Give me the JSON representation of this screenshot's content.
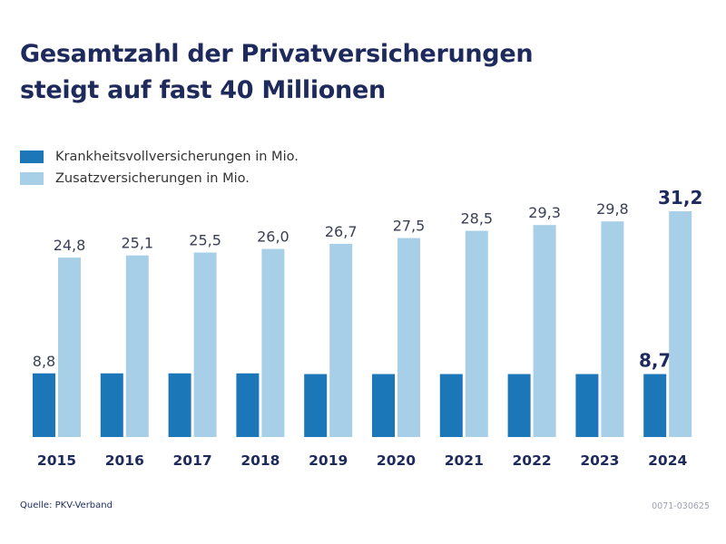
{
  "title_lines": [
    "Gesamtzahl der Privatversicherungen",
    "steigt auf fast 40 Millionen"
  ],
  "legend": [
    {
      "label": "Krankheitsvollversicherungen in Mio.",
      "color": "#1c77b8"
    },
    {
      "label": "Zusatzversicherungen in Mio.",
      "color": "#a8cfe8"
    }
  ],
  "chart_data": {
    "type": "bar",
    "categories": [
      "2015",
      "2016",
      "2017",
      "2018",
      "2019",
      "2020",
      "2021",
      "2022",
      "2023",
      "2024"
    ],
    "series": [
      {
        "name": "Krankheitsvollversicherungen in Mio.",
        "color": "#1c77b8",
        "values": [
          8.8,
          8.8,
          8.8,
          8.8,
          8.7,
          8.7,
          8.7,
          8.7,
          8.7,
          8.7
        ],
        "labels": [
          "8,8",
          "",
          "",
          "",
          "",
          "",
          "",
          "",
          "",
          "8,7"
        ]
      },
      {
        "name": "Zusatzversicherungen in Mio.",
        "color": "#a8cfe8",
        "values": [
          24.8,
          25.1,
          25.5,
          26.0,
          26.7,
          27.5,
          28.5,
          29.3,
          29.8,
          31.2
        ],
        "labels": [
          "24,8",
          "25,1",
          "25,5",
          "26,0",
          "26,7",
          "27,5",
          "28,5",
          "29,3",
          "29,8",
          "31,2"
        ]
      }
    ],
    "highlight_category": "2024",
    "ylim": [
      0,
      31.2
    ]
  },
  "footer": {
    "source": "Quelle: PKV-Verband",
    "code": "0071-030625"
  }
}
